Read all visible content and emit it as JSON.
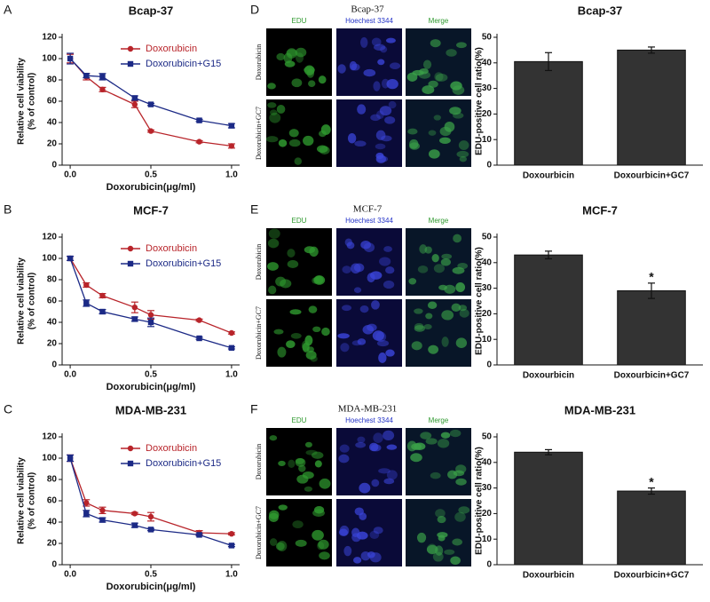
{
  "chart_data": [
    {
      "panel": "A",
      "type": "line",
      "title": "Bcap-37",
      "xlabel": "Doxorubicin(μg/ml)",
      "ylabel": [
        "Relative cell viability",
        "(% of control)"
      ],
      "x": [
        0,
        0.1,
        0.2,
        0.4,
        0.5,
        0.8,
        1.0
      ],
      "series": [
        {
          "name": "Doxorubicin",
          "color": "#b8242a",
          "marker": "circle",
          "values": [
            100,
            83,
            71,
            57,
            32,
            22,
            18
          ],
          "errors": [
            4,
            3,
            2,
            3,
            1,
            1,
            2
          ]
        },
        {
          "name": "Doxorubicin+G15",
          "color": "#1c2a86",
          "marker": "square",
          "values": [
            100,
            84,
            83,
            63,
            57,
            42,
            37
          ],
          "errors": [
            5,
            2,
            3,
            2,
            1,
            1,
            2
          ]
        }
      ],
      "xlim": [
        -0.05,
        1.05
      ],
      "xticks": [
        {
          "value": 0,
          "label": "0.0"
        },
        {
          "value": 0.5,
          "label": "0.5"
        },
        {
          "value": 1,
          "label": "1.0"
        }
      ],
      "ylim": [
        0,
        120
      ],
      "yticks": [
        0,
        20,
        40,
        60,
        80,
        100,
        120
      ]
    },
    {
      "type": "bar",
      "title": "Bcap-37",
      "ylabel": "EDU-positive cell ratio(%)",
      "categories": [
        "Doxourbicin",
        "Doxourbicin+GC7"
      ],
      "values": [
        40.5,
        45
      ],
      "errors": [
        3.5,
        1.2
      ],
      "annotations": [
        null,
        null
      ],
      "color": "#333333",
      "ylim": [
        0,
        50
      ],
      "yticks": [
        0,
        10,
        20,
        30,
        40,
        50
      ]
    },
    {
      "panel": "B",
      "type": "line",
      "title": "MCF-7",
      "xlabel": "Doxorubicin(μg/ml)",
      "ylabel": [
        "Relative cell viability",
        "(% of control)"
      ],
      "x": [
        0,
        0.1,
        0.2,
        0.4,
        0.5,
        0.8,
        1.0
      ],
      "series": [
        {
          "name": "Doxorubicin",
          "color": "#b8242a",
          "marker": "circle",
          "values": [
            100,
            75,
            65,
            54,
            47,
            42,
            30
          ],
          "errors": [
            2,
            2,
            2,
            5,
            4,
            1,
            1
          ]
        },
        {
          "name": "Doxorubicin+G15",
          "color": "#1c2a86",
          "marker": "square",
          "values": [
            100,
            58,
            50,
            43,
            40,
            25,
            16
          ],
          "errors": [
            2,
            3,
            2,
            2,
            4,
            1,
            1
          ]
        }
      ],
      "xlim": [
        -0.05,
        1.05
      ],
      "xticks": [
        {
          "value": 0,
          "label": "0.0"
        },
        {
          "value": 0.5,
          "label": "0.5"
        },
        {
          "value": 1,
          "label": "1.0"
        }
      ],
      "ylim": [
        0,
        120
      ],
      "yticks": [
        0,
        20,
        40,
        60,
        80,
        100,
        120
      ]
    },
    {
      "type": "bar",
      "title": "MCF-7",
      "ylabel": "EDU-positive cell ratio(%)",
      "categories": [
        "Doxourbicin",
        "Doxourbicin+GC7"
      ],
      "values": [
        43,
        29
      ],
      "errors": [
        1.5,
        3
      ],
      "annotations": [
        null,
        "*"
      ],
      "color": "#333333",
      "ylim": [
        0,
        50
      ],
      "yticks": [
        0,
        10,
        20,
        30,
        40,
        50
      ]
    },
    {
      "panel": "C",
      "type": "line",
      "title": "MDA-MB-231",
      "xlabel": "Doxorubicin(μg/ml)",
      "ylabel": [
        "Relative cell viability",
        "(% of control)"
      ],
      "x": [
        0,
        0.1,
        0.2,
        0.4,
        0.5,
        0.8,
        1.0
      ],
      "series": [
        {
          "name": "Doxorubicin",
          "color": "#b8242a",
          "marker": "circle",
          "values": [
            100,
            58,
            51,
            48,
            45,
            30,
            29
          ],
          "errors": [
            3,
            3,
            3,
            1,
            4,
            2,
            1
          ]
        },
        {
          "name": "Doxorubicin+G15",
          "color": "#1c2a86",
          "marker": "square",
          "values": [
            100,
            48,
            42,
            37,
            33,
            28,
            18
          ],
          "errors": [
            3,
            3,
            2,
            2,
            1,
            1,
            1
          ]
        }
      ],
      "xlim": [
        -0.05,
        1.05
      ],
      "xticks": [
        {
          "value": 0,
          "label": "0.0"
        },
        {
          "value": 0.5,
          "label": "0.5"
        },
        {
          "value": 1,
          "label": "1.0"
        }
      ],
      "ylim": [
        0,
        120
      ],
      "yticks": [
        0,
        20,
        40,
        60,
        80,
        100,
        120
      ]
    },
    {
      "type": "bar",
      "title": "MDA-MB-231",
      "ylabel": "EDU-positive cell ratio(%)",
      "categories": [
        "Doxourbicin",
        "Doxourbicin+GC7"
      ],
      "values": [
        44,
        28.8
      ],
      "errors": [
        1,
        1.2
      ],
      "annotations": [
        null,
        "*"
      ],
      "color": "#333333",
      "ylim": [
        0,
        50
      ],
      "yticks": [
        0,
        10,
        20,
        30,
        40,
        50
      ]
    }
  ],
  "image_panels": [
    {
      "panel": "D",
      "title": "Bcap-37",
      "columns": [
        "EDU",
        "Hoechest 3344",
        "Merge"
      ],
      "rows": [
        "Doxorubicin",
        "Doxorubicin+GC7"
      ]
    },
    {
      "panel": "E",
      "title": "MCF-7",
      "columns": [
        "EDU",
        "Hoechest 3344",
        "Merge"
      ],
      "rows": [
        "Doxorubicin",
        "Doxorubicin+GC7"
      ]
    },
    {
      "panel": "F",
      "title": "MDA-MB-231",
      "columns": [
        "EDU",
        "Hoechest 3344",
        "Merge"
      ],
      "rows": [
        "Doxorubicin",
        "Doxorubicin+GC7"
      ]
    }
  ]
}
